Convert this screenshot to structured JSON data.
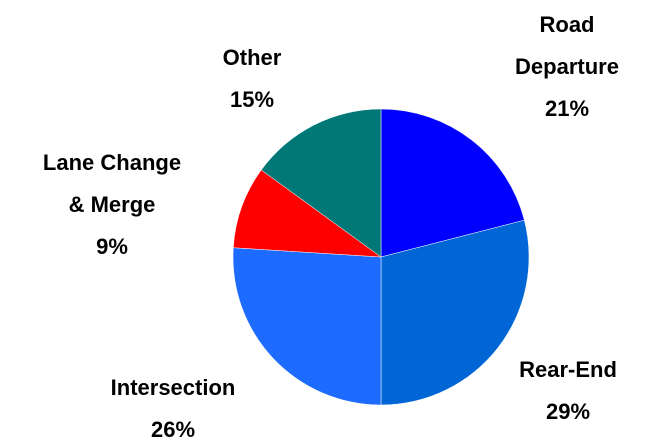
{
  "chart_data": {
    "type": "pie",
    "categories": [
      "Road Departure",
      "Rear-End",
      "Intersection",
      "Lane Change & Merge",
      "Other"
    ],
    "values": [
      21,
      29,
      26,
      9,
      15
    ],
    "value_labels": [
      "21%",
      "29%",
      "26%",
      "9%",
      "15%"
    ],
    "colors": [
      "#0000ff",
      "#0066d6",
      "#1e6cff",
      "#ff0000",
      "#007878"
    ]
  }
}
